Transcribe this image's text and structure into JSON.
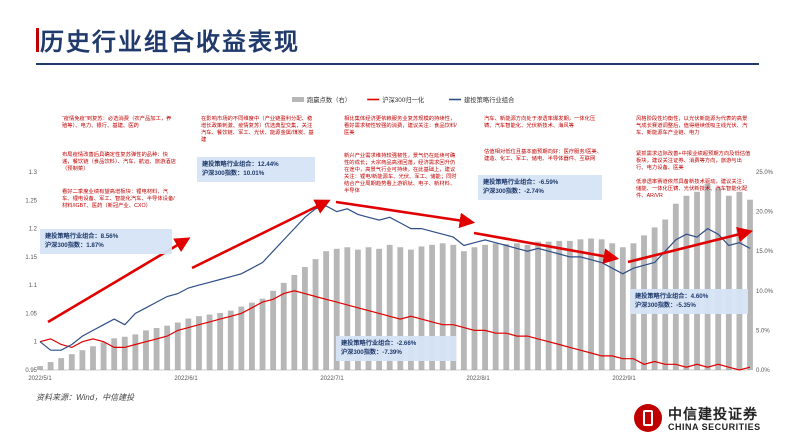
{
  "page": {
    "title": "历史行业组合收益表现",
    "source": "资料来源：Wind，中信建投",
    "logo_cn": "中信建投证券",
    "logo_en": "CHINA SECURITIES"
  },
  "colors": {
    "navy": "#1f3a6b",
    "red": "#e00000",
    "line_blue": "#2f4f88",
    "bars": "#b7b7b7",
    "arrow": "#e00000"
  },
  "chart_data": {
    "type": "line",
    "legend": [
      "跑赢点数（右）",
      "沪深300归一化",
      "建投策略行业组合"
    ],
    "x_ticks": [
      "2022/5/1",
      "2022/6/1",
      "2022/7/1",
      "2022/8/1",
      "2022/9/1"
    ],
    "y_left": {
      "ticks": [
        "0.95",
        "1",
        "1.05",
        "1.1",
        "1.15",
        "1.2",
        "1.25",
        "1.3"
      ],
      "lim": [
        0.95,
        1.3
      ]
    },
    "y_right": {
      "ticks": [
        "0.0%",
        "5.0%",
        "10.0%",
        "15.0%",
        "20.0%",
        "25.0%"
      ],
      "lim": [
        0,
        25
      ]
    },
    "strategy": [
      1,
      0.985,
      0.985,
      0.995,
      1.01,
      1.02,
      1.03,
      1.04,
      1.03,
      1.05,
      1.06,
      1.07,
      1.08,
      1.085,
      1.095,
      1.1,
      1.105,
      1.11,
      1.115,
      1.12,
      1.13,
      1.14,
      1.16,
      1.18,
      1.2,
      1.22,
      1.235,
      1.24,
      1.23,
      1.235,
      1.225,
      1.22,
      1.215,
      1.22,
      1.21,
      1.2,
      1.2,
      1.195,
      1.19,
      1.185,
      1.17,
      1.175,
      1.18,
      1.175,
      1.17,
      1.165,
      1.16,
      1.165,
      1.16,
      1.155,
      1.15,
      1.15,
      1.145,
      1.14,
      1.13,
      1.12,
      1.13,
      1.135,
      1.14,
      1.16,
      1.18,
      1.19,
      1.185,
      1.2,
      1.19,
      1.17,
      1.175,
      1.165
    ],
    "hs300": [
      1,
      1.005,
      0.995,
      0.99,
      1.0,
      1.005,
      1.0,
      0.99,
      0.99,
      0.995,
      1.0,
      1.005,
      1.01,
      1.02,
      1.025,
      1.03,
      1.035,
      1.04,
      1.045,
      1.05,
      1.06,
      1.07,
      1.075,
      1.085,
      1.09,
      1.085,
      1.08,
      1.075,
      1.07,
      1.065,
      1.06,
      1.055,
      1.05,
      1.045,
      1.04,
      1.045,
      1.04,
      1.035,
      1.03,
      1.03,
      1.025,
      1.02,
      1.02,
      1.015,
      1.015,
      1.01,
      1.01,
      1.005,
      1.0,
      0.995,
      0.99,
      0.985,
      0.98,
      0.975,
      0.975,
      0.97,
      0.97,
      0.96,
      0.965,
      0.96,
      0.96,
      0.955,
      0.96,
      0.955,
      0.96,
      0.955,
      0.95,
      0.955
    ],
    "excess_right": [
      0.5,
      1,
      1.5,
      2,
      2.5,
      3,
      3.5,
      4,
      4.2,
      4.5,
      5,
      5.3,
      5.6,
      6,
      6.5,
      6.8,
      7,
      7.2,
      7.5,
      8,
      8.5,
      9,
      10,
      11,
      12,
      13,
      14,
      15,
      15.3,
      15.5,
      15.2,
      15.5,
      15.3,
      15.8,
      15.5,
      15.2,
      15.6,
      15.8,
      16,
      15.8,
      15,
      15.5,
      15.8,
      16,
      15.9,
      16,
      15.8,
      16.2,
      16.2,
      16.3,
      16.3,
      16.5,
      16.6,
      16.5,
      16,
      15.5,
      16,
      17,
      18,
      19,
      21,
      22,
      22.5,
      23.5,
      23,
      22,
      22.5,
      21.5
    ],
    "notes": [
      {
        "text": "“疫情免疫”到复苏：必选消费（农产品加工，养殖等）、电力、银行、基建、医药",
        "style": "white"
      },
      {
        "text": "布局疫情改善后具确定性复苏弹性的品种：快递，餐饮链（食品饮料）、汽车、航运、旅游酒店（预制菜）",
        "style": "white"
      },
      {
        "text": "看好二季度业绩有望高增板块：锂电材料、汽车、锂电设备、军工、智能化汽车、半导体设备/材料/IGBT、医药（新冠产业、CXO）",
        "style": "white"
      },
      {
        "text": "在影响市场的不同维度中（产业链盈利分配、稳增长政策刺激、疫情复苏）优选典型交集，关注汽车、餐饮链、军工、光伏、能源金属/煤炭、基建",
        "style": "white"
      },
      {
        "text": "相比集体经济更依赖服务业复苏规模的持续性，看好需求韧性较强的消费，建议关注：食品饮料/医美",
        "style": "white"
      },
      {
        "text": "新兴产业需求维持较强韧性，景气仍在延续可确性的成长；大宗商品高涨回落，经济需求回升仍在途中，高景气行业可持续，在此基础上，建议关注：锂电/新能源车、光伏、军工、储能；同时结合产业周期趋势看上游钒钛、电子、新材料、半导体",
        "style": "blue"
      },
      {
        "text": "汽车、新能源方向处于渗透率爆发期，一体化压铸、汽车智能化、光伏新技术、海风等",
        "style": "white"
      },
      {
        "text": "估值相对低位且基本面预期向好：医疗服务/医美、建造、化工、军工、储电、半导体器件、互联网",
        "style": "white"
      },
      {
        "text": "风格阶段性均衡性，以光伏新能源为代表的高景气成长赛道调整后，值得继续低吸主线光伏、汽车、新能源车产业链、电力",
        "style": "white"
      },
      {
        "text": "紧抓需求边际改善+中报业绩超预期方向及低估值板块，建议关注证券、消费等方向，旅游与出行、电力设备、医美",
        "style": "white"
      },
      {
        "text": "低渗透率赛道依然具备新技术驱动，建议关注：储能、一体化压铸、光伏新技术、汽车智能化配件、AR/VR",
        "style": "white"
      }
    ],
    "stats": [
      {
        "line1": "建投策略行业组合：8.56%",
        "line2": "沪深300指数：1.87%"
      },
      {
        "line1": "建投策略行业组合：12.44%",
        "line2": "沪深300指数：10.01%"
      },
      {
        "line1": "建投策略行业组合：-2.66%",
        "line2": "沪深300指数：-7.39%"
      },
      {
        "line1": "建投策略行业组合：-6.59%",
        "line2": "沪深300指数：-2.74%"
      },
      {
        "line1": "建投策略行业组合：4.60%",
        "line2": "沪深300指数：-5.35%"
      }
    ]
  }
}
